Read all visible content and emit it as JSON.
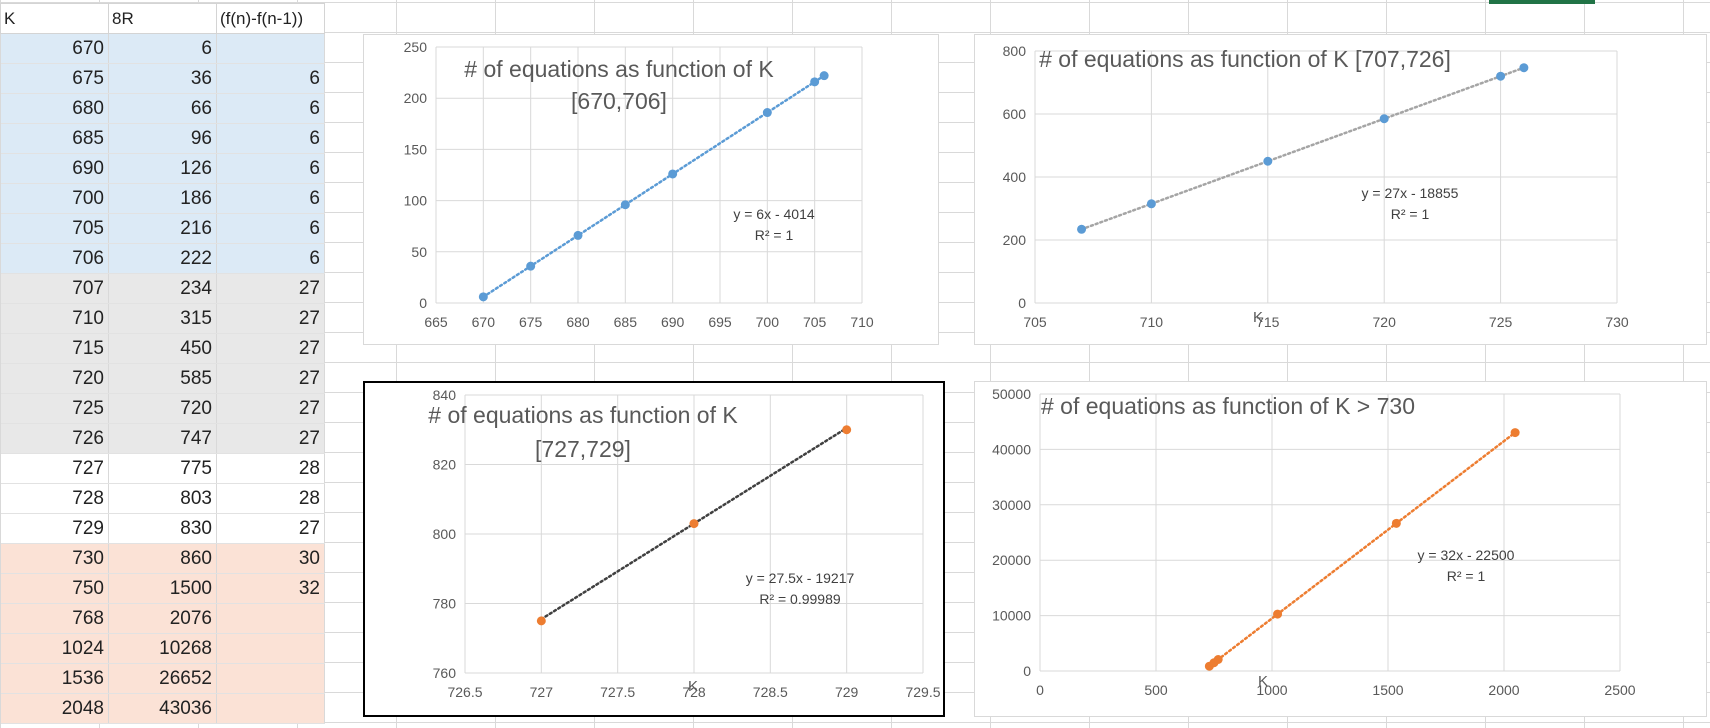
{
  "sheet": {
    "headers": [
      "K",
      "8R",
      "(f(n)-f(n-1))"
    ],
    "rows": [
      {
        "k": "670",
        "r": "6",
        "d": "",
        "group": "blue"
      },
      {
        "k": "675",
        "r": "36",
        "d": "6",
        "group": "blue"
      },
      {
        "k": "680",
        "r": "66",
        "d": "6",
        "group": "blue"
      },
      {
        "k": "685",
        "r": "96",
        "d": "6",
        "group": "blue"
      },
      {
        "k": "690",
        "r": "126",
        "d": "6",
        "group": "blue"
      },
      {
        "k": "700",
        "r": "186",
        "d": "6",
        "group": "blue"
      },
      {
        "k": "705",
        "r": "216",
        "d": "6",
        "group": "blue"
      },
      {
        "k": "706",
        "r": "222",
        "d": "6",
        "group": "blue"
      },
      {
        "k": "707",
        "r": "234",
        "d": "27",
        "group": "gray"
      },
      {
        "k": "710",
        "r": "315",
        "d": "27",
        "group": "gray"
      },
      {
        "k": "715",
        "r": "450",
        "d": "27",
        "group": "gray"
      },
      {
        "k": "720",
        "r": "585",
        "d": "27",
        "group": "gray"
      },
      {
        "k": "725",
        "r": "720",
        "d": "27",
        "group": "gray"
      },
      {
        "k": "726",
        "r": "747",
        "d": "27",
        "group": "gray"
      },
      {
        "k": "727",
        "r": "775",
        "d": "28",
        "group": "white"
      },
      {
        "k": "728",
        "r": "803",
        "d": "28",
        "group": "white"
      },
      {
        "k": "729",
        "r": "830",
        "d": "27",
        "group": "white"
      },
      {
        "k": "730",
        "r": "860",
        "d": "30",
        "group": "peach"
      },
      {
        "k": "750",
        "r": "1500",
        "d": "32",
        "group": "peach"
      },
      {
        "k": "768",
        "r": "2076",
        "d": "",
        "group": "peach"
      },
      {
        "k": "1024",
        "r": "10268",
        "d": "",
        "group": "peach"
      },
      {
        "k": "1536",
        "r": "26652",
        "d": "",
        "group": "peach"
      },
      {
        "k": "2048",
        "r": "43036",
        "d": "",
        "group": "peach"
      }
    ]
  },
  "colors": {
    "blue": "#5b9bd5",
    "orange": "#ed7d31",
    "gray_trend": "#a5a5a5",
    "black_trend": "#404040",
    "selection": "#217346"
  },
  "chart_data": [
    {
      "type": "scatter",
      "title": [
        "# of equations as function of K",
        "[670,706]"
      ],
      "xlabel": "",
      "ylabel": "",
      "xlim": [
        665,
        710
      ],
      "ylim": [
        0,
        250
      ],
      "xticks": [
        665,
        670,
        675,
        680,
        685,
        690,
        695,
        700,
        705,
        710
      ],
      "yticks": [
        0,
        50,
        100,
        150,
        200,
        250
      ],
      "grid": true,
      "x": [
        670,
        675,
        680,
        685,
        690,
        700,
        705,
        706
      ],
      "y": [
        6,
        36,
        66,
        96,
        126,
        186,
        216,
        222
      ],
      "point_color": "#5b9bd5",
      "trend_color": "#5b9bd5",
      "trendline": {
        "slope": 6,
        "intercept": -4014,
        "from": 670,
        "to": 706
      },
      "equation": [
        "y = 6x - 4014",
        "R² = 1"
      ]
    },
    {
      "type": "scatter",
      "title": [
        "# of equations as function of K [707,726]"
      ],
      "xlabel": "K",
      "ylabel": "",
      "xlim": [
        705,
        730
      ],
      "ylim": [
        0,
        800
      ],
      "xticks": [
        705,
        710,
        715,
        720,
        725,
        730
      ],
      "yticks": [
        0,
        200,
        400,
        600,
        800
      ],
      "grid": true,
      "x": [
        707,
        710,
        715,
        720,
        725,
        726
      ],
      "y": [
        234,
        315,
        450,
        585,
        720,
        747
      ],
      "point_color": "#5b9bd5",
      "trend_color": "#a5a5a5",
      "trendline": {
        "slope": 27,
        "intercept": -18855,
        "from": 707,
        "to": 726
      },
      "equation": [
        "y = 27x - 18855",
        "R² = 1"
      ]
    },
    {
      "type": "scatter",
      "title": [
        "# of equations as function of K",
        "[727,729]"
      ],
      "xlabel": "K",
      "ylabel": "",
      "xlim": [
        726.5,
        729.5
      ],
      "ylim": [
        760,
        840
      ],
      "xticks": [
        726.5,
        727,
        727.5,
        728,
        728.5,
        729,
        729.5
      ],
      "yticks": [
        760,
        780,
        800,
        820,
        840
      ],
      "grid": true,
      "x": [
        727,
        728,
        729
      ],
      "y": [
        775,
        803,
        830
      ],
      "point_color": "#ed7d31",
      "trend_color": "#404040",
      "trendline": {
        "slope": 27.5,
        "intercept": -19217,
        "from": 727,
        "to": 729
      },
      "equation": [
        "y = 27.5x - 19217",
        "R² = 0.99989"
      ]
    },
    {
      "type": "scatter",
      "title": [
        "# of equations as function of K > 730"
      ],
      "xlabel": "K",
      "ylabel": "",
      "xlim": [
        0,
        2500
      ],
      "ylim": [
        0,
        50000
      ],
      "xticks": [
        0,
        500,
        1000,
        1500,
        2000,
        2500
      ],
      "yticks": [
        0,
        10000,
        20000,
        30000,
        40000,
        50000
      ],
      "grid": true,
      "x": [
        730,
        750,
        768,
        1024,
        1536,
        2048
      ],
      "y": [
        860,
        1500,
        2076,
        10268,
        26652,
        43036
      ],
      "point_color": "#ed7d31",
      "trend_color": "#ed7d31",
      "trendline": {
        "slope": 32,
        "intercept": -22500,
        "from": 730,
        "to": 2048
      },
      "equation": [
        "y = 32x - 22500",
        "R² = 1"
      ]
    }
  ]
}
